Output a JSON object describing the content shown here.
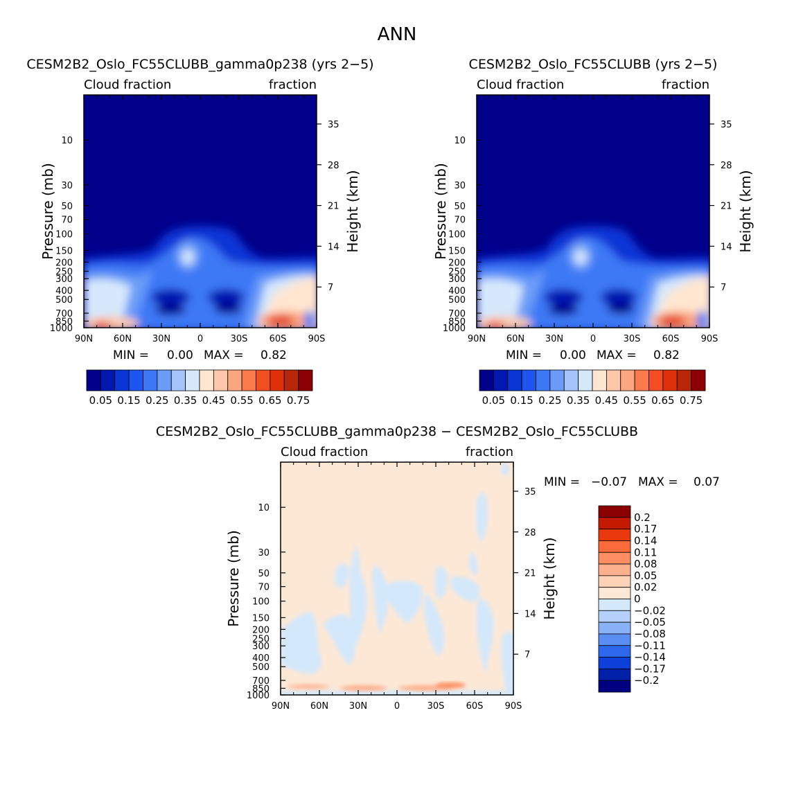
{
  "figure": {
    "season": "ANN"
  },
  "chart_data": [
    {
      "type": "heatmap",
      "title": "CESM2B2_Oslo_FC55CLUBB_gamma0p238 (yrs 2−5)",
      "top_left_label": "Cloud fraction",
      "top_right_label": "fraction",
      "ylabel": "Pressure (mb)",
      "y2label": "Height (km)",
      "x_ticks": [
        "90N",
        "60N",
        "30N",
        "0",
        "30S",
        "60S",
        "90S"
      ],
      "y_ticks": [
        "10",
        "30",
        "50",
        "70",
        "100",
        "150",
        "200",
        "250",
        "300",
        "400",
        "500",
        "700",
        "850",
        "1000"
      ],
      "y2_ticks": [
        "35",
        "28",
        "21",
        "14",
        "7"
      ],
      "min_label": "MIN =",
      "min_value": "0.00",
      "max_label": "MAX =",
      "max_value": "0.82",
      "colorbar_labels": [
        "0.05",
        "0.15",
        "0.25",
        "0.35",
        "0.45",
        "0.55",
        "0.65",
        "0.75"
      ],
      "colorbar_colors": [
        "#00008b",
        "#0018b0",
        "#0a36d6",
        "#1e55f0",
        "#3c78f5",
        "#6a9cf8",
        "#a4c4fb",
        "#d6e8fc",
        "#ffe6d0",
        "#fdc8aa",
        "#fca680",
        "#fb7a4c",
        "#f24e22",
        "#e0320a",
        "#b82808",
        "#8b0000"
      ]
    },
    {
      "type": "heatmap",
      "title": "CESM2B2_Oslo_FC55CLUBB (yrs 2−5)",
      "top_left_label": "Cloud fraction",
      "top_right_label": "fraction",
      "ylabel": "Pressure (mb)",
      "y2label": "Height (km)",
      "x_ticks": [
        "90N",
        "60N",
        "30N",
        "0",
        "30S",
        "60S",
        "90S"
      ],
      "y_ticks": [
        "10",
        "30",
        "50",
        "70",
        "100",
        "150",
        "200",
        "250",
        "300",
        "400",
        "500",
        "700",
        "850",
        "1000"
      ],
      "y2_ticks": [
        "35",
        "28",
        "21",
        "14",
        "7"
      ],
      "min_label": "MIN =",
      "min_value": "0.00",
      "max_label": "MAX =",
      "max_value": "0.82",
      "colorbar_labels": [
        "0.05",
        "0.15",
        "0.25",
        "0.35",
        "0.45",
        "0.55",
        "0.65",
        "0.75"
      ],
      "colorbar_colors": [
        "#00008b",
        "#0018b0",
        "#0a36d6",
        "#1e55f0",
        "#3c78f5",
        "#6a9cf8",
        "#a4c4fb",
        "#d6e8fc",
        "#ffe6d0",
        "#fdc8aa",
        "#fca680",
        "#fb7a4c",
        "#f24e22",
        "#e0320a",
        "#b82808",
        "#8b0000"
      ]
    },
    {
      "type": "heatmap",
      "title": "CESM2B2_Oslo_FC55CLUBB_gamma0p238 − CESM2B2_Oslo_FC55CLUBB",
      "top_left_label": "Cloud fraction",
      "top_right_label": "fraction",
      "ylabel": "Pressure (mb)",
      "y2label": "Height (km)",
      "x_ticks": [
        "90N",
        "60N",
        "30N",
        "0",
        "30S",
        "60S",
        "90S"
      ],
      "y_ticks": [
        "10",
        "30",
        "50",
        "70",
        "100",
        "150",
        "200",
        "250",
        "300",
        "400",
        "500",
        "700",
        "850",
        "1000"
      ],
      "y2_ticks": [
        "35",
        "28",
        "21",
        "14",
        "7"
      ],
      "min_label": "MIN =",
      "min_value": "−0.07",
      "max_label": "MAX =",
      "max_value": "0.07",
      "colorbar_labels": [
        "0.2",
        "0.17",
        "0.14",
        "0.11",
        "0.08",
        "0.05",
        "0.02",
        "0",
        "−0.02",
        "−0.05",
        "−0.08",
        "−0.11",
        "−0.14",
        "−0.17",
        "−0.2"
      ],
      "colorbar_colors": [
        "#8b0000",
        "#c41a00",
        "#e8380c",
        "#fb6a3a",
        "#fc8e62",
        "#fdb08e",
        "#fed2b6",
        "#fde8d6",
        "#d4e8fb",
        "#b4d0fb",
        "#8ab2f8",
        "#5a8ef5",
        "#2e68ef",
        "#0c40d8",
        "#0020a8",
        "#000080"
      ]
    }
  ]
}
